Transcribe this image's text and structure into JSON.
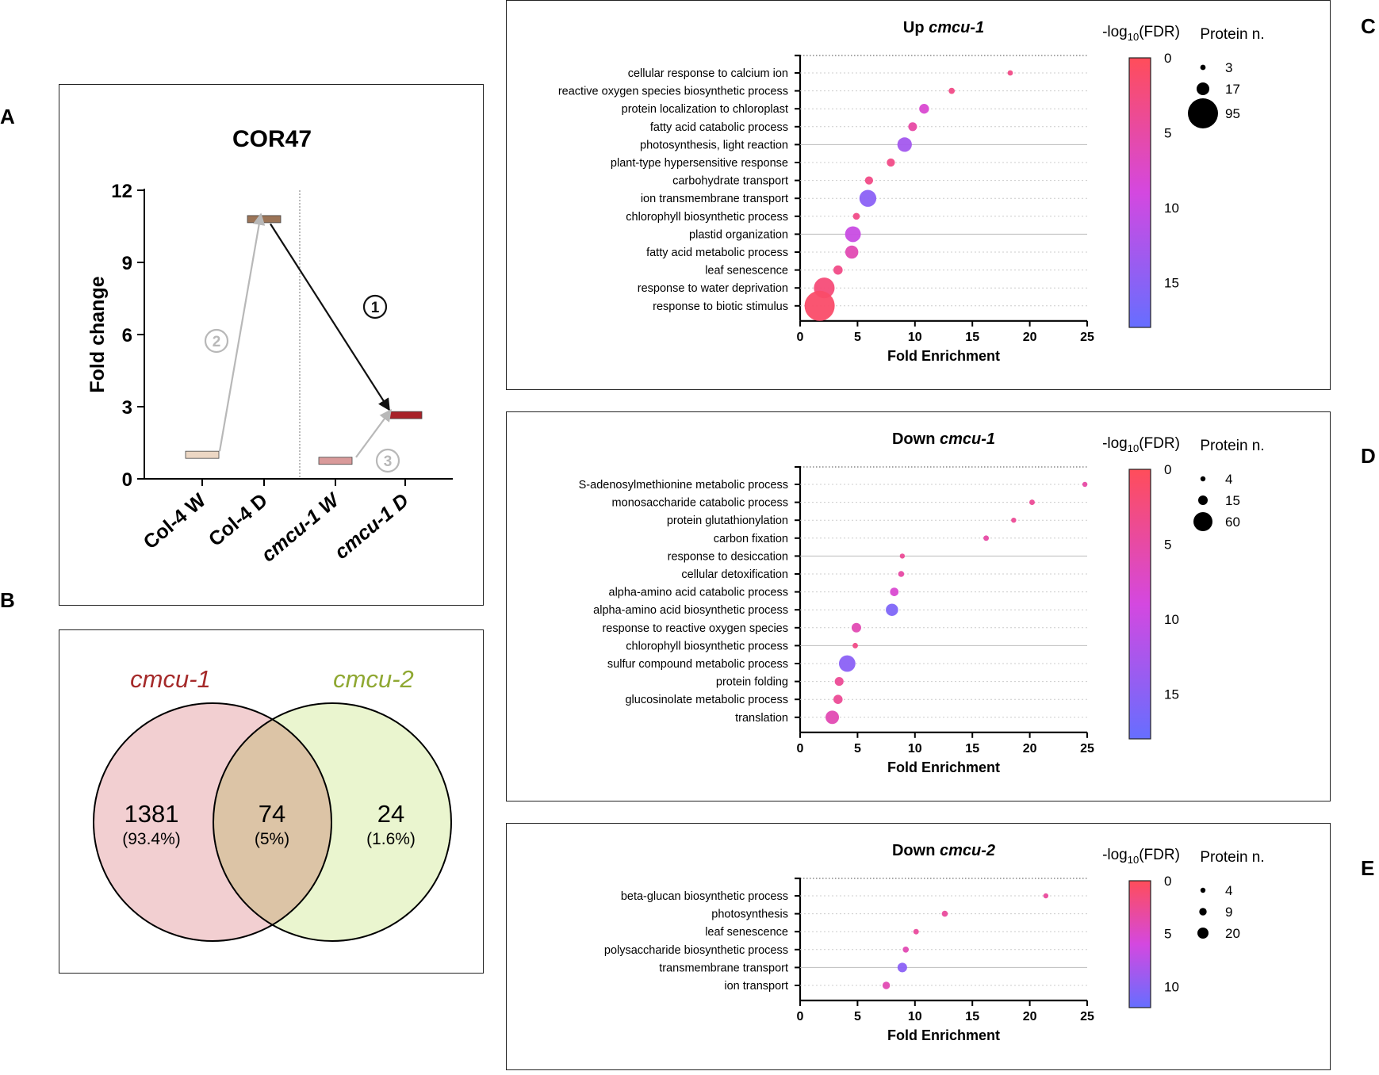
{
  "panel_letters": {
    "A": "A",
    "B": "B",
    "C": "C",
    "D": "D",
    "E": "E"
  },
  "panel_a": {
    "chart_data": {
      "type": "bar",
      "title": "COR47",
      "ylabel": "Fold change",
      "ylim": [
        0,
        12
      ],
      "yticks": [
        0,
        3,
        6,
        9,
        12
      ],
      "categories": [
        "Col-4 W",
        "Col-4 D",
        "cmcu-1 W",
        "cmcu-1 D"
      ],
      "values": [
        1.0,
        10.8,
        0.75,
        2.65
      ],
      "colors": [
        "#ecd7c4",
        "#9b7457",
        "#d99a9a",
        "#a82229"
      ],
      "annotations": [
        {
          "label": "1",
          "from": "Col-4 D",
          "to": "cmcu-1 D",
          "color": "#111111"
        },
        {
          "label": "2",
          "from": "Col-4 W",
          "to": "Col-4 D",
          "color": "#b8b8b8"
        },
        {
          "label": "3",
          "from": "cmcu-1 W",
          "to": "cmcu-1 D",
          "color": "#b8b8b8"
        }
      ]
    }
  },
  "panel_b": {
    "chart_data": {
      "type": "venn",
      "sets": [
        {
          "name": "cmcu-1",
          "color": "#a52a2a"
        },
        {
          "name": "cmcu-2",
          "color": "#8fa832"
        }
      ],
      "regions": [
        {
          "count": "1381",
          "percent": "(93.4%)"
        },
        {
          "count": "74",
          "percent": "(5%)"
        },
        {
          "count": "24",
          "percent": "(1.6%)"
        }
      ]
    }
  },
  "enrichment": {
    "xlabel": "Fold Enrichment",
    "color_title_prefix": "-log",
    "color_title_sub": "10",
    "color_title_suffix": "(FDR)",
    "size_title": "Protein n.",
    "xlim": [
      0,
      25
    ],
    "xticks": [
      0,
      5,
      10,
      15,
      20,
      25
    ]
  },
  "chart_data": [
    {
      "type": "scatter",
      "title_prefix": "Up ",
      "title_italic": "cmcu-1",
      "xlabel": "Fold Enrichment",
      "xlim": [
        0,
        25
      ],
      "color_max": 18,
      "color_ticks": [
        0,
        5,
        10,
        15
      ],
      "size_legend": [
        3,
        17,
        95
      ],
      "terms": [
        "cellular response to calcium ion",
        "reactive oxygen species biosynthetic process",
        "protein localization to chloroplast",
        "fatty acid catabolic process",
        "photosynthesis, light reaction",
        "plant-type hypersensitive response",
        "carbohydrate transport",
        "ion transmembrane transport",
        "chlorophyll biosynthetic process",
        "plastid organization",
        "fatty acid metabolic process",
        "leaf senescence",
        "response to water deprivation",
        "response to biotic stimulus"
      ],
      "fold": [
        18.3,
        13.2,
        10.8,
        9.8,
        9.1,
        7.9,
        6.0,
        5.9,
        4.9,
        4.6,
        4.5,
        3.3,
        2.1,
        1.7
      ],
      "fdr": [
        3,
        3,
        8,
        5,
        13,
        3,
        3,
        15,
        3,
        10,
        6,
        3,
        2,
        1
      ],
      "count": [
        3,
        4,
        10,
        8,
        22,
        7,
        7,
        30,
        5,
        26,
        18,
        9,
        45,
        95
      ]
    },
    {
      "type": "scatter",
      "title_prefix": "Down ",
      "title_italic": "cmcu-1",
      "xlabel": "Fold Enrichment",
      "xlim": [
        0,
        25
      ],
      "color_max": 18,
      "color_ticks": [
        0,
        5,
        10,
        15
      ],
      "size_legend": [
        4,
        15,
        60
      ],
      "terms": [
        "S-adenosylmethionine metabolic process",
        "monosaccharide catabolic process",
        "protein glutathionylation",
        "carbon fixation",
        "response to desiccation",
        "cellular detoxification",
        "alpha-amino acid catabolic process",
        "alpha-amino acid biosynthetic process",
        "response to reactive oxygen species",
        "chlorophyll biosynthetic process",
        "sulfur compound metabolic process",
        "protein folding",
        "glucosinolate metabolic process",
        "translation"
      ],
      "fold": [
        24.8,
        20.2,
        18.6,
        16.2,
        8.9,
        8.8,
        8.2,
        8.0,
        4.9,
        4.8,
        4.1,
        3.4,
        3.3,
        2.8
      ],
      "fdr": [
        5,
        4,
        4,
        5,
        4,
        5,
        8,
        16,
        6,
        3,
        15,
        4,
        4,
        6
      ],
      "count": [
        4,
        5,
        4,
        5,
        4,
        6,
        12,
        25,
        15,
        5,
        45,
        13,
        14,
        30
      ]
    },
    {
      "type": "scatter",
      "title_prefix": "Down ",
      "title_italic": "cmcu-2",
      "xlabel": "Fold Enrichment",
      "xlim": [
        0,
        25
      ],
      "color_max": 12,
      "color_ticks": [
        0,
        5,
        10
      ],
      "size_legend": [
        4,
        9,
        20
      ],
      "terms": [
        "beta-glucan biosynthetic process",
        "photosynthesis",
        "leaf senescence",
        "polysaccharide biosynthetic process",
        "transmembrane transport",
        "ion transport"
      ],
      "fold": [
        21.4,
        12.6,
        10.1,
        9.2,
        8.9,
        7.5
      ],
      "fdr": [
        3,
        3,
        3,
        4,
        10,
        4
      ],
      "count": [
        4,
        6,
        5,
        6,
        15,
        9
      ]
    }
  ]
}
